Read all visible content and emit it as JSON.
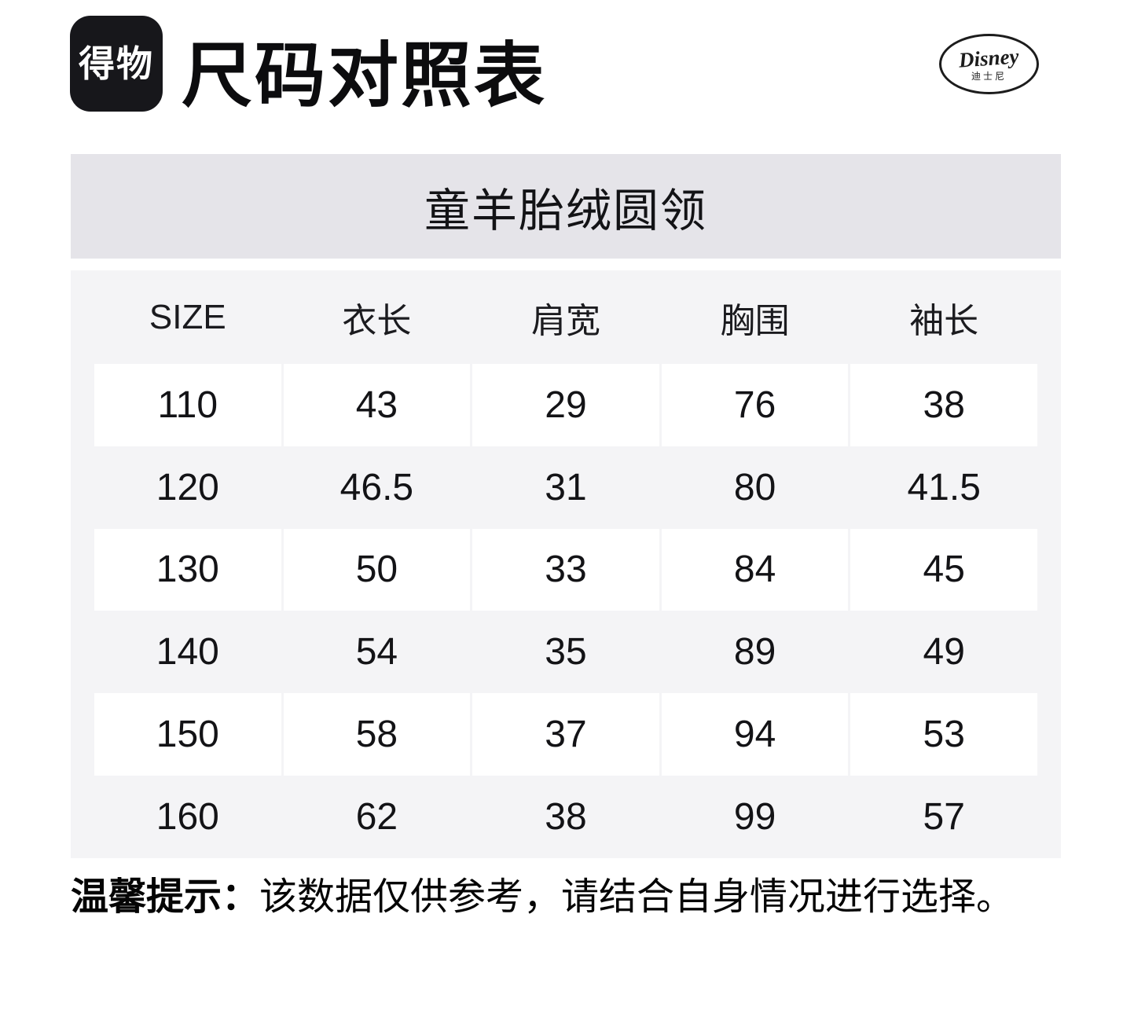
{
  "header": {
    "brand_logo_text": "得物",
    "title": "尺码对照表"
  },
  "disney_logo": {
    "script_text": "Disney",
    "chinese_text": "迪士尼"
  },
  "product_banner": {
    "name": "童羊胎绒圆领"
  },
  "size_table": {
    "headers": [
      "SIZE",
      "衣长",
      "肩宽",
      "胸围",
      "袖长"
    ],
    "header_keys": [
      "size",
      "garment-length",
      "shoulder-width",
      "chest",
      "sleeve-length"
    ],
    "rows": [
      [
        "110",
        "43",
        "29",
        "76",
        "38"
      ],
      [
        "120",
        "46.5",
        "31",
        "80",
        "41.5"
      ],
      [
        "130",
        "50",
        "33",
        "84",
        "45"
      ],
      [
        "140",
        "54",
        "35",
        "89",
        "49"
      ],
      [
        "150",
        "58",
        "37",
        "94",
        "53"
      ],
      [
        "160",
        "62",
        "38",
        "99",
        "57"
      ]
    ]
  },
  "tip": {
    "label": "温馨提示：",
    "text": "该数据仅供参考，请结合自身情况进行选择。"
  },
  "colors": {
    "banner_bg": "#e5e4e9",
    "table_bg": "#f4f4f6",
    "row_white": "#ffffff",
    "logo_bg": "#17171b",
    "text_primary": "#131316"
  }
}
